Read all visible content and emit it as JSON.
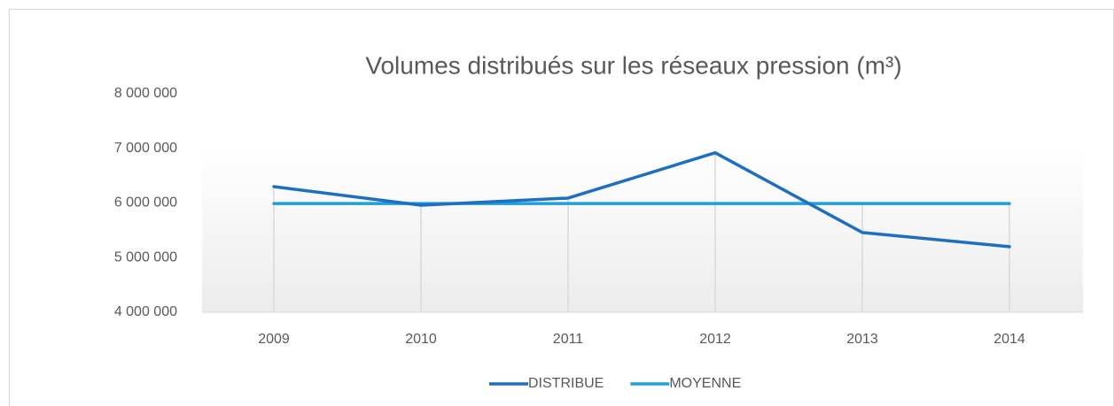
{
  "chart_data": {
    "type": "line",
    "title": "Volumes distribués sur les réseaux pression (m³)",
    "categories": [
      "2009",
      "2010",
      "2011",
      "2012",
      "2013",
      "2014"
    ],
    "series": [
      {
        "name": "DISTRIBUE",
        "color": "#1f6fc0",
        "values": [
          6300000,
          5960000,
          6090000,
          6920000,
          5460000,
          5200000
        ]
      },
      {
        "name": "MOYENNE",
        "color": "#21a0d8",
        "values": [
          5990000,
          5990000,
          5990000,
          5990000,
          5990000,
          5990000
        ]
      }
    ],
    "ylim": [
      4000000,
      8000000
    ],
    "yticks": [
      {
        "value": 4000000,
        "label": "4 000 000"
      },
      {
        "value": 5000000,
        "label": "5 000 000"
      },
      {
        "value": 6000000,
        "label": "6 000 000"
      },
      {
        "value": 7000000,
        "label": "7 000 000"
      },
      {
        "value": 8000000,
        "label": "8 000 000"
      }
    ],
    "drop_lines": true,
    "legend": "bottom"
  }
}
